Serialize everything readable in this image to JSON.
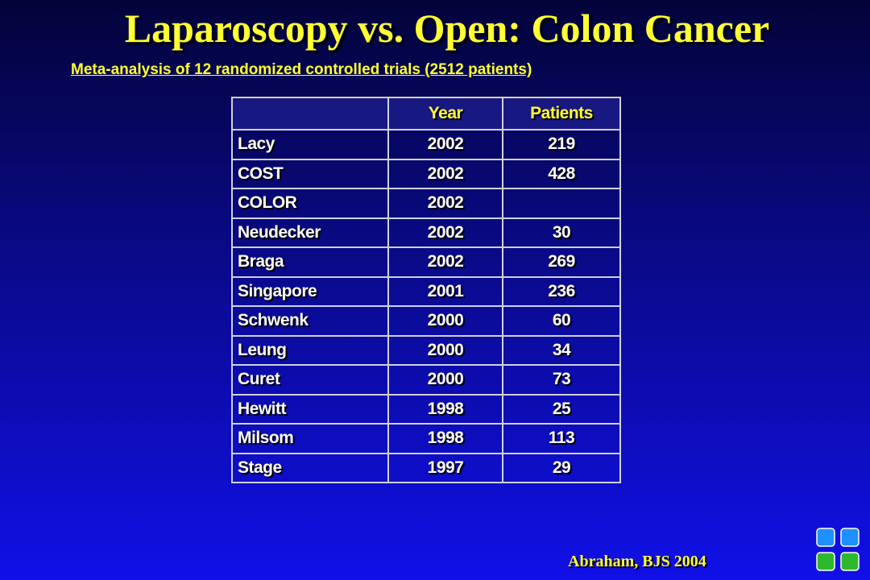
{
  "header": {
    "title": "Laparoscopy vs. Open: Colon Cancer",
    "subtitle": "Meta-analysis of 12 randomized controlled trials (2512 patients)"
  },
  "table": {
    "columns": [
      "Year",
      "Patients"
    ],
    "rows": [
      [
        "Lacy",
        2002,
        219
      ],
      [
        "COST",
        2002,
        428
      ],
      [
        "COLOR",
        2002,
        null
      ],
      [
        "Neudecker",
        2002,
        30
      ],
      [
        "Braga",
        2002,
        269
      ],
      [
        "Singapore",
        2001,
        236
      ],
      [
        "Schwenk",
        2000,
        60
      ],
      [
        "Leung",
        2000,
        34
      ],
      [
        "Curet",
        2000,
        73
      ],
      [
        "Hewitt",
        1998,
        25
      ],
      [
        "Milsom",
        1998,
        113
      ],
      [
        "Stage",
        1997,
        29
      ]
    ]
  },
  "footer": {
    "citation": "Abraham, BJS 2004"
  }
}
